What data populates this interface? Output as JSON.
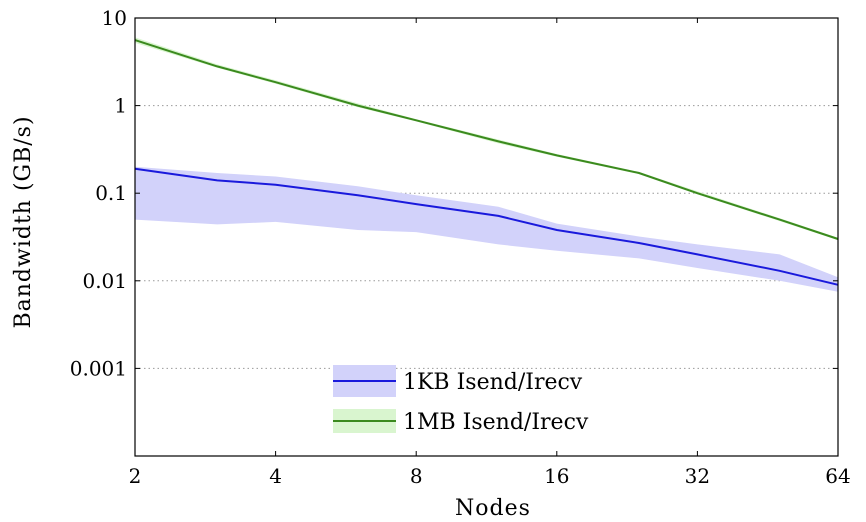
{
  "chart_data": {
    "type": "line",
    "title": "",
    "xlabel": "Nodes",
    "ylabel": "Bandwidth (GB/s)",
    "x_scale": "log2",
    "y_scale": "log10",
    "xlim": [
      2,
      64
    ],
    "ylim": [
      0.0001,
      10
    ],
    "x_ticks": [
      2,
      4,
      8,
      16,
      32,
      64
    ],
    "x_tick_labels": [
      "2",
      "4",
      "8",
      "16",
      "32",
      "64"
    ],
    "y_ticks": [
      0.001,
      0.01,
      0.1,
      1,
      10
    ],
    "y_tick_labels": [
      "0.001",
      "0.01",
      "0.1",
      "1",
      "10"
    ],
    "grid": "horizontal dotted",
    "legend_position": "bottom-center",
    "series": [
      {
        "name": "1KB Isend/Irecv",
        "color": "#1a1adc",
        "band_color": "#d2d2fa",
        "x": [
          2,
          3,
          4,
          6,
          8,
          12,
          16,
          24,
          32,
          48,
          64
        ],
        "values": [
          0.19,
          0.14,
          0.125,
          0.095,
          0.075,
          0.055,
          0.038,
          0.027,
          0.02,
          0.013,
          0.009
        ],
        "band_upper": [
          0.2,
          0.17,
          0.155,
          0.12,
          0.095,
          0.07,
          0.045,
          0.032,
          0.026,
          0.02,
          0.011
        ],
        "band_lower": [
          0.05,
          0.044,
          0.047,
          0.038,
          0.036,
          0.026,
          0.022,
          0.018,
          0.014,
          0.01,
          0.0075
        ]
      },
      {
        "name": "1MB Isend/Irecv",
        "color": "#3b8a1e",
        "band_color": "#d9f5cf",
        "x": [
          2,
          3,
          4,
          6,
          8,
          12,
          16,
          24,
          32,
          48,
          64
        ],
        "values": [
          5.6,
          2.8,
          1.85,
          1.0,
          0.68,
          0.39,
          0.27,
          0.17,
          0.1,
          0.05,
          0.03
        ],
        "band_upper": [
          6.0,
          2.95,
          1.95,
          1.06,
          0.7,
          0.41,
          0.28,
          0.175,
          0.105,
          0.052,
          0.031
        ],
        "band_lower": [
          5.2,
          2.7,
          1.78,
          0.96,
          0.66,
          0.37,
          0.26,
          0.165,
          0.097,
          0.048,
          0.029
        ]
      }
    ]
  }
}
